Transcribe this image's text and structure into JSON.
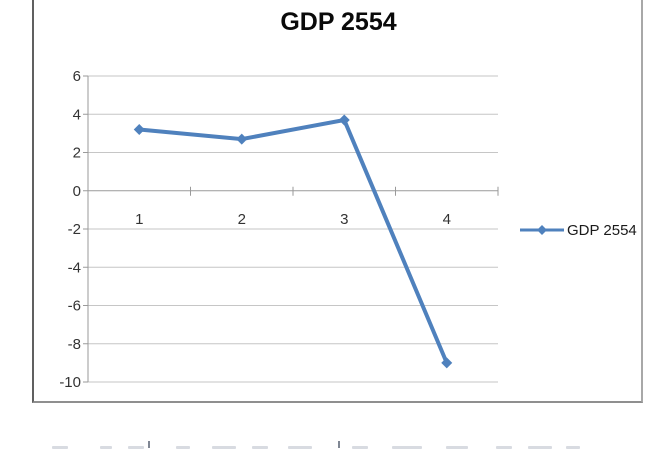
{
  "chart": {
    "title": "GDP 2554",
    "legend_label": "GDP 2554"
  },
  "chart_data": {
    "type": "line",
    "title": "GDP 2554",
    "categories": [
      "1",
      "2",
      "3",
      "4"
    ],
    "series": [
      {
        "name": "GDP 2554",
        "values": [
          3.2,
          2.7,
          3.7,
          -9.0
        ]
      }
    ],
    "xlabel": "",
    "ylabel": "",
    "ylim": [
      -10,
      6
    ],
    "yticks": [
      6,
      4,
      2,
      0,
      -2,
      -4,
      -6,
      -8,
      -10
    ],
    "grid": true,
    "legend_position": "right",
    "marker": "diamond",
    "colors": {
      "series_line": "#4F81BD",
      "gridline": "#c6c6c6",
      "axis_line": "#9a9a9a",
      "tick_label": "#333333",
      "title_text": "#0a0a0a"
    }
  }
}
